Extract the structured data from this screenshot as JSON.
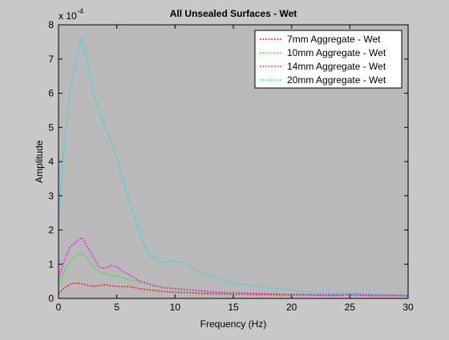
{
  "chart_data": {
    "type": "line",
    "title": "All Unsealed Surfaces - Wet",
    "xlabel": "Frequency (Hz)",
    "ylabel": "Amplitude",
    "y_exponent_label": {
      "base": "x 10",
      "exponent": "-4"
    },
    "xlim": [
      0,
      30
    ],
    "ylim": [
      0,
      8
    ],
    "xticks": [
      0,
      5,
      10,
      15,
      20,
      25,
      30
    ],
    "yticks": [
      0,
      1,
      2,
      3,
      4,
      5,
      6,
      7,
      8
    ],
    "grid": false,
    "legend_position": "top-right",
    "line_style": "dotted",
    "colors": {
      "figure_background": "#c8c8c8",
      "axes_background": "#b9b9b9",
      "axis_color": "#000000"
    },
    "series": [
      {
        "name": "7mm Aggregate - Wet",
        "color": "#ff0000",
        "x": [
          0,
          0.5,
          1,
          1.5,
          2,
          2.5,
          3,
          3.5,
          4,
          4.5,
          5,
          5.5,
          6,
          6.5,
          7,
          8,
          9,
          10,
          11,
          12,
          13,
          14,
          15,
          16,
          17,
          18,
          19,
          20,
          21,
          22,
          23,
          24,
          25,
          26,
          27,
          28,
          29,
          30
        ],
        "values": [
          0.15,
          0.3,
          0.42,
          0.45,
          0.43,
          0.38,
          0.35,
          0.38,
          0.4,
          0.37,
          0.35,
          0.34,
          0.35,
          0.32,
          0.28,
          0.24,
          0.2,
          0.18,
          0.17,
          0.15,
          0.14,
          0.13,
          0.12,
          0.12,
          0.11,
          0.11,
          0.1,
          0.1,
          0.1,
          0.09,
          0.09,
          0.09,
          0.1,
          0.09,
          0.08,
          0.08,
          0.08,
          0.07
        ]
      },
      {
        "name": "10mm Aggregate - Wet",
        "color": "#00ff00",
        "x": [
          0,
          0.5,
          1,
          1.5,
          2,
          2.5,
          3,
          3.5,
          4,
          4.5,
          5,
          5.5,
          6,
          6.5,
          7,
          8,
          9,
          10,
          11,
          12,
          13,
          14,
          15,
          16,
          17,
          18,
          19,
          20,
          21,
          22,
          23,
          24,
          25,
          26,
          27,
          28,
          29,
          30
        ],
        "values": [
          0.4,
          0.8,
          1.1,
          1.25,
          1.32,
          1.15,
          0.9,
          0.78,
          0.72,
          0.68,
          0.65,
          0.6,
          0.55,
          0.52,
          0.48,
          0.38,
          0.3,
          0.27,
          0.24,
          0.21,
          0.19,
          0.17,
          0.16,
          0.15,
          0.14,
          0.13,
          0.12,
          0.12,
          0.11,
          0.11,
          0.1,
          0.1,
          0.1,
          0.1,
          0.09,
          0.09,
          0.09,
          0.08
        ]
      },
      {
        "name": "14mm Aggregate - Wet",
        "color": "#ff00ff",
        "x": [
          0,
          0.5,
          1,
          1.5,
          2,
          2.5,
          3,
          3.5,
          4,
          4.5,
          5,
          5.5,
          6,
          6.5,
          7,
          8,
          9,
          10,
          11,
          12,
          13,
          14,
          15,
          16,
          17,
          18,
          19,
          20,
          21,
          22,
          23,
          24,
          25,
          26,
          27,
          28,
          29,
          30
        ],
        "values": [
          0.6,
          1.1,
          1.5,
          1.65,
          1.78,
          1.5,
          1.2,
          0.9,
          0.88,
          0.97,
          0.92,
          0.8,
          0.7,
          0.6,
          0.5,
          0.4,
          0.32,
          0.29,
          0.26,
          0.23,
          0.2,
          0.18,
          0.17,
          0.16,
          0.15,
          0.14,
          0.13,
          0.12,
          0.12,
          0.11,
          0.11,
          0.1,
          0.12,
          0.11,
          0.1,
          0.1,
          0.09,
          0.09
        ]
      },
      {
        "name": "20mm Aggregate - Wet",
        "color": "#00e5ee",
        "x": [
          0,
          0.5,
          1,
          1.5,
          2,
          2.5,
          3,
          3.5,
          4,
          4.5,
          5,
          5.5,
          6,
          6.5,
          7,
          7.5,
          8,
          9,
          10,
          11,
          12,
          13,
          14,
          15,
          16,
          17,
          18,
          19,
          20,
          21,
          22,
          23,
          24,
          25,
          26,
          27,
          28,
          29,
          30
        ],
        "values": [
          2.3,
          4.5,
          6.1,
          6.9,
          7.6,
          6.8,
          6.0,
          5.5,
          5.0,
          4.6,
          4.1,
          3.5,
          2.9,
          2.4,
          1.9,
          1.45,
          1.2,
          1.05,
          1.1,
          1.0,
          0.8,
          0.65,
          0.55,
          0.45,
          0.4,
          0.35,
          0.3,
          0.28,
          0.25,
          0.2,
          0.18,
          0.16,
          0.15,
          0.17,
          0.14,
          0.13,
          0.12,
          0.12,
          0.1
        ]
      }
    ]
  }
}
